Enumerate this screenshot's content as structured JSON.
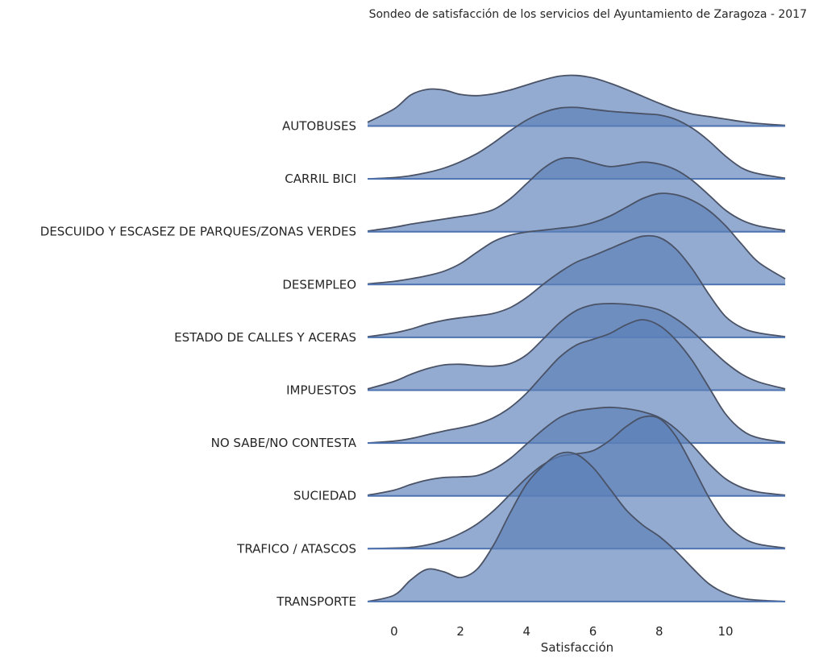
{
  "chart_data": {
    "type": "area",
    "title": "Sondeo de satisfacción de los servicios del Ayuntamiento de Zaragoza - 2017",
    "xlabel": "Satisfacción",
    "ylabel": "",
    "xlim": [
      -0.8,
      11.8
    ],
    "xticks": [
      "0",
      "2",
      "4",
      "6",
      "8",
      "10"
    ],
    "grid": false,
    "legend": "none",
    "colors": {
      "fill": "#5b7fb8",
      "fill_opacity": 0.66,
      "stroke": "#4a5266",
      "baseline": "#4c72b0"
    },
    "x": [
      -0.8,
      0.0,
      0.5,
      1.0,
      1.5,
      2.0,
      2.5,
      3.0,
      3.5,
      4.0,
      4.5,
      5.0,
      5.5,
      6.0,
      6.5,
      7.0,
      7.5,
      8.0,
      8.5,
      9.0,
      9.5,
      10.0,
      10.5,
      11.0,
      11.8
    ],
    "series": [
      {
        "name": "AUTOBUSES",
        "values": [
          0.06,
          0.27,
          0.49,
          0.58,
          0.57,
          0.5,
          0.48,
          0.51,
          0.57,
          0.65,
          0.73,
          0.79,
          0.8,
          0.76,
          0.68,
          0.58,
          0.47,
          0.36,
          0.26,
          0.19,
          0.15,
          0.11,
          0.07,
          0.04,
          0.01
        ]
      },
      {
        "name": "CARRIL BICI",
        "values": [
          0.0,
          0.02,
          0.05,
          0.1,
          0.17,
          0.27,
          0.4,
          0.57,
          0.76,
          0.93,
          1.05,
          1.12,
          1.13,
          1.1,
          1.07,
          1.05,
          1.03,
          1.01,
          0.94,
          0.8,
          0.6,
          0.36,
          0.17,
          0.08,
          0.01
        ]
      },
      {
        "name": "DESCUIDO Y ESCASEZ DE PARQUES/ZONAS VERDES",
        "values": [
          0.01,
          0.07,
          0.12,
          0.16,
          0.2,
          0.24,
          0.28,
          0.35,
          0.52,
          0.76,
          1.0,
          1.15,
          1.16,
          1.09,
          1.03,
          1.06,
          1.1,
          1.07,
          0.98,
          0.81,
          0.58,
          0.34,
          0.18,
          0.09,
          0.02
        ]
      },
      {
        "name": "DESEMPLEO",
        "values": [
          0.01,
          0.05,
          0.09,
          0.14,
          0.21,
          0.33,
          0.51,
          0.68,
          0.78,
          0.83,
          0.86,
          0.89,
          0.92,
          0.98,
          1.08,
          1.22,
          1.36,
          1.44,
          1.42,
          1.33,
          1.17,
          0.93,
          0.63,
          0.35,
          0.09
        ]
      },
      {
        "name": "ESTADO DE CALLES Y ACERAS",
        "values": [
          0.01,
          0.07,
          0.13,
          0.21,
          0.27,
          0.31,
          0.34,
          0.38,
          0.47,
          0.63,
          0.84,
          1.03,
          1.19,
          1.29,
          1.4,
          1.51,
          1.6,
          1.58,
          1.4,
          1.08,
          0.68,
          0.33,
          0.15,
          0.07,
          0.01
        ]
      },
      {
        "name": "IMPUESTOS",
        "values": [
          0.02,
          0.14,
          0.25,
          0.34,
          0.4,
          0.41,
          0.39,
          0.38,
          0.42,
          0.56,
          0.81,
          1.07,
          1.26,
          1.35,
          1.37,
          1.36,
          1.33,
          1.27,
          1.13,
          0.93,
          0.68,
          0.44,
          0.25,
          0.13,
          0.02
        ]
      },
      {
        "name": "NO SABE/NO CONTESTA",
        "values": [
          0.0,
          0.03,
          0.07,
          0.13,
          0.19,
          0.24,
          0.3,
          0.4,
          0.56,
          0.79,
          1.08,
          1.36,
          1.55,
          1.64,
          1.73,
          1.87,
          1.95,
          1.86,
          1.63,
          1.3,
          0.88,
          0.46,
          0.2,
          0.08,
          0.01
        ]
      },
      {
        "name": "SUCIEDAD",
        "values": [
          0.01,
          0.09,
          0.18,
          0.25,
          0.29,
          0.3,
          0.32,
          0.42,
          0.59,
          0.82,
          1.05,
          1.24,
          1.34,
          1.38,
          1.4,
          1.38,
          1.33,
          1.24,
          1.06,
          0.8,
          0.51,
          0.27,
          0.13,
          0.06,
          0.01
        ]
      },
      {
        "name": "TRAFICO / ATASCOS",
        "values": [
          0.0,
          0.01,
          0.02,
          0.06,
          0.13,
          0.24,
          0.39,
          0.6,
          0.86,
          1.12,
          1.33,
          1.46,
          1.5,
          1.55,
          1.71,
          1.93,
          2.08,
          2.06,
          1.78,
          1.31,
          0.81,
          0.41,
          0.18,
          0.07,
          0.01
        ]
      },
      {
        "name": "TRANSPORTE",
        "values": [
          0.0,
          0.1,
          0.34,
          0.51,
          0.47,
          0.38,
          0.51,
          0.89,
          1.4,
          1.86,
          2.15,
          2.34,
          2.33,
          2.12,
          1.79,
          1.45,
          1.21,
          1.03,
          0.8,
          0.53,
          0.28,
          0.13,
          0.05,
          0.02,
          0.0
        ]
      }
    ]
  }
}
